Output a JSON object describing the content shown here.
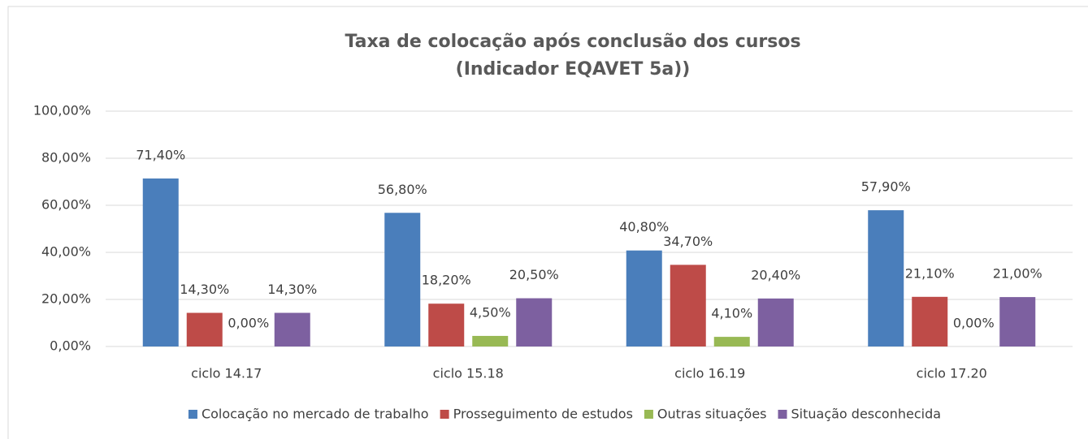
{
  "chart_data": {
    "type": "bar",
    "title": [
      "Taxa de colocação após conclusão dos cursos",
      "(Indicador EQAVET 5a))"
    ],
    "categories": [
      "ciclo 14.17",
      "ciclo 15.18",
      "ciclo 16.19",
      "ciclo 17.20"
    ],
    "series": [
      {
        "name": "Colocação no mercado de trabalho",
        "color": "#4a7ebb",
        "values": [
          71.4,
          56.8,
          40.8,
          57.9
        ],
        "value_labels": [
          "71,40%",
          "56,80%",
          "40,80%",
          "57,90%"
        ]
      },
      {
        "name": "Prosseguimento de estudos",
        "color": "#be4b48",
        "values": [
          14.3,
          18.2,
          34.7,
          21.1
        ],
        "value_labels": [
          "14,30%",
          "18,20%",
          "34,70%",
          "21,10%"
        ]
      },
      {
        "name": "Outras situações",
        "color": "#98b954",
        "values": [
          0,
          4.5,
          4.1,
          0
        ],
        "value_labels": [
          "0,00%",
          "4,50%",
          "4,10%",
          "0,00%"
        ]
      },
      {
        "name": "Situação desconhecida",
        "color": "#7d60a0",
        "values": [
          14.3,
          20.5,
          20.4,
          21.0
        ],
        "value_labels": [
          "14,30%",
          "20,50%",
          "20,40%",
          "21,00%"
        ]
      }
    ],
    "ylim": [
      0,
      100
    ],
    "yticks": [
      {
        "value": 0,
        "label": "0,00%"
      },
      {
        "value": 20,
        "label": "20,00%"
      },
      {
        "value": 40,
        "label": "40,00%"
      },
      {
        "value": 60,
        "label": "60,00%"
      },
      {
        "value": 80,
        "label": "80,00%"
      },
      {
        "value": 100,
        "label": "100,00%"
      }
    ],
    "grid": true,
    "legend": "bottom"
  }
}
